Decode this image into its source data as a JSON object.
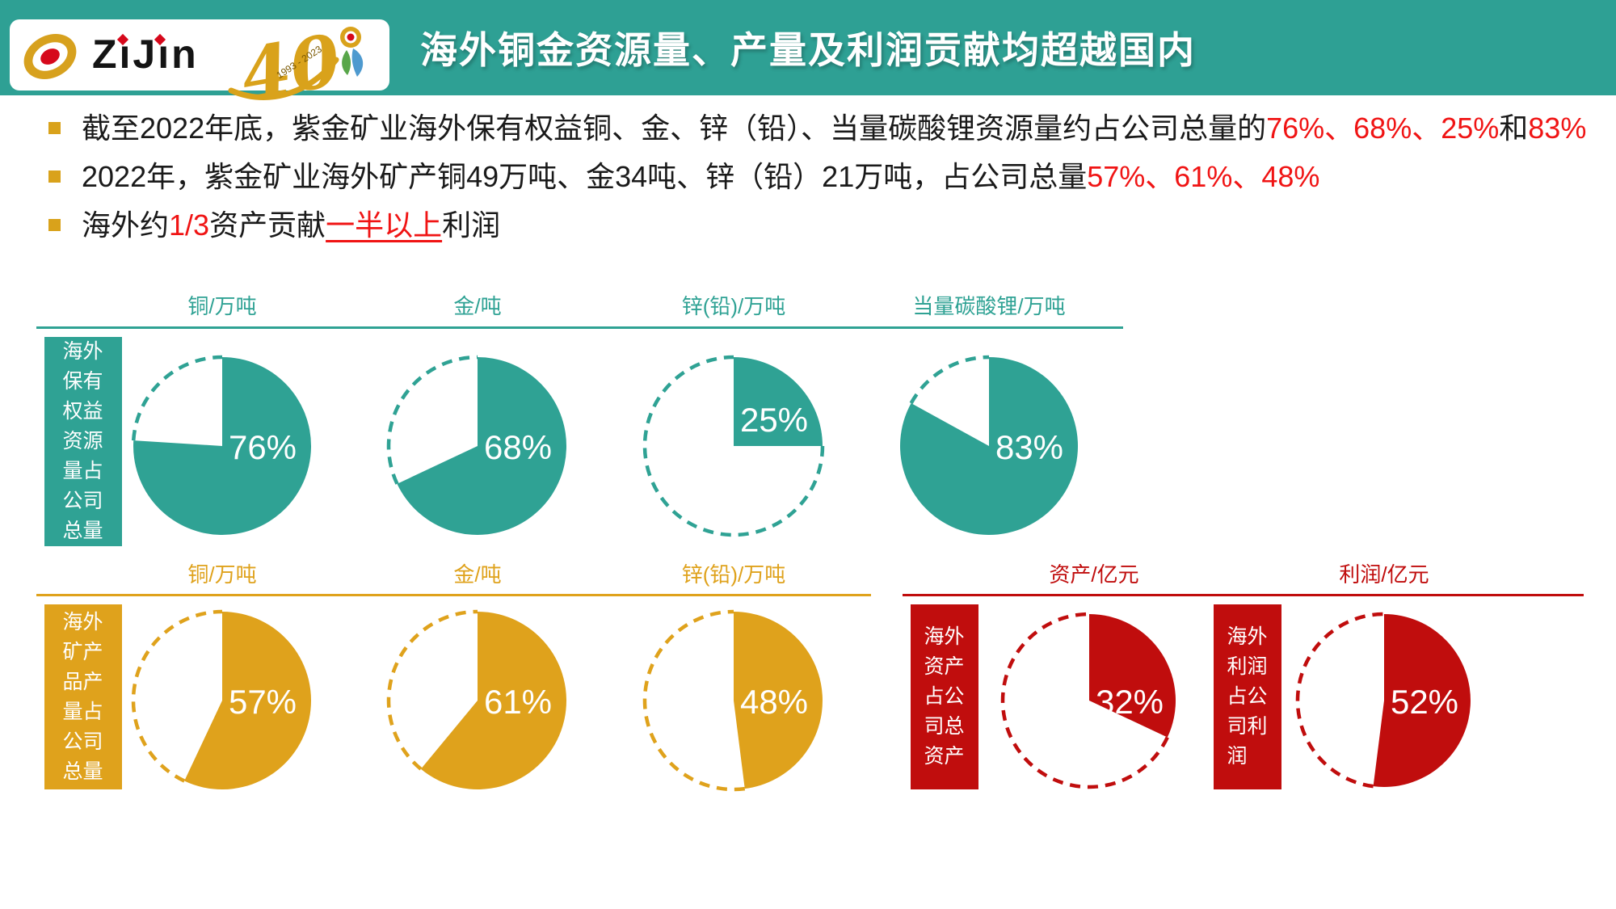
{
  "header": {
    "title": "海外铜金资源量、产量及利润贡献均超越国内",
    "logo_text": "ZiJin",
    "anniversary_number": "40",
    "anniversary_years": "1993 - 2023"
  },
  "bullets": [
    {
      "segments": [
        {
          "text": "截至2022年底，紫金矿业海外保有权益铜、金、锌（铅）、当量碳酸锂资源量约占公司总量的",
          "style": "normal"
        },
        {
          "text": "76%、68%、25%",
          "style": "red"
        },
        {
          "text": "和",
          "style": "normal"
        },
        {
          "text": "83%",
          "style": "red"
        }
      ]
    },
    {
      "segments": [
        {
          "text": "2022年，紫金矿业海外矿产铜49万吨、金34吨、锌（铅）21万吨，占公司总量",
          "style": "normal"
        },
        {
          "text": "57%、61%、48%",
          "style": "red"
        }
      ]
    },
    {
      "segments": [
        {
          "text": "海外约",
          "style": "normal"
        },
        {
          "text": "1/3",
          "style": "red"
        },
        {
          "text": "资产贡献",
          "style": "normal"
        },
        {
          "text": "一半以上",
          "style": "red-underline"
        },
        {
          "text": "利润",
          "style": "normal"
        }
      ]
    }
  ],
  "chart_data": [
    {
      "type": "pie",
      "group": "overseas-retained-equity-resources",
      "row_label": "海外保有权益资源量占公司总量",
      "color": "#2FA294",
      "pies": [
        {
          "label": "铜/万吨",
          "value": 76,
          "unit": "%"
        },
        {
          "label": "金/吨",
          "value": 68,
          "unit": "%"
        },
        {
          "label": "锌(铅)/万吨",
          "value": 25,
          "unit": "%"
        },
        {
          "label": "当量碳酸锂/万吨",
          "value": 83,
          "unit": "%"
        }
      ]
    },
    {
      "type": "pie",
      "group": "overseas-mine-production",
      "row_label": "海外矿产品产量占公司总量",
      "color": "#DFA21C",
      "pies": [
        {
          "label": "铜/万吨",
          "value": 57,
          "unit": "%"
        },
        {
          "label": "金/吨",
          "value": 61,
          "unit": "%"
        },
        {
          "label": "锌(铅)/万吨",
          "value": 48,
          "unit": "%"
        }
      ]
    },
    {
      "type": "pie",
      "group": "overseas-assets",
      "row_label": "海外资产占公司总资产",
      "color": "#C00D0D",
      "pies": [
        {
          "label": "资产/亿元",
          "value": 32,
          "unit": "%"
        }
      ]
    },
    {
      "type": "pie",
      "group": "overseas-profit",
      "row_label": "海外利润占公司利润",
      "color": "#C00D0D",
      "pies": [
        {
          "label": "利润/亿元",
          "value": 52,
          "unit": "%"
        }
      ]
    }
  ],
  "colors": {
    "header_teal": "#2EA094",
    "pie_teal": "#2FA294",
    "pie_gold": "#DFA21C",
    "pie_red": "#C00D0D",
    "highlight_red": "#F01414",
    "bullet_square_gold": "#D9A21B"
  }
}
